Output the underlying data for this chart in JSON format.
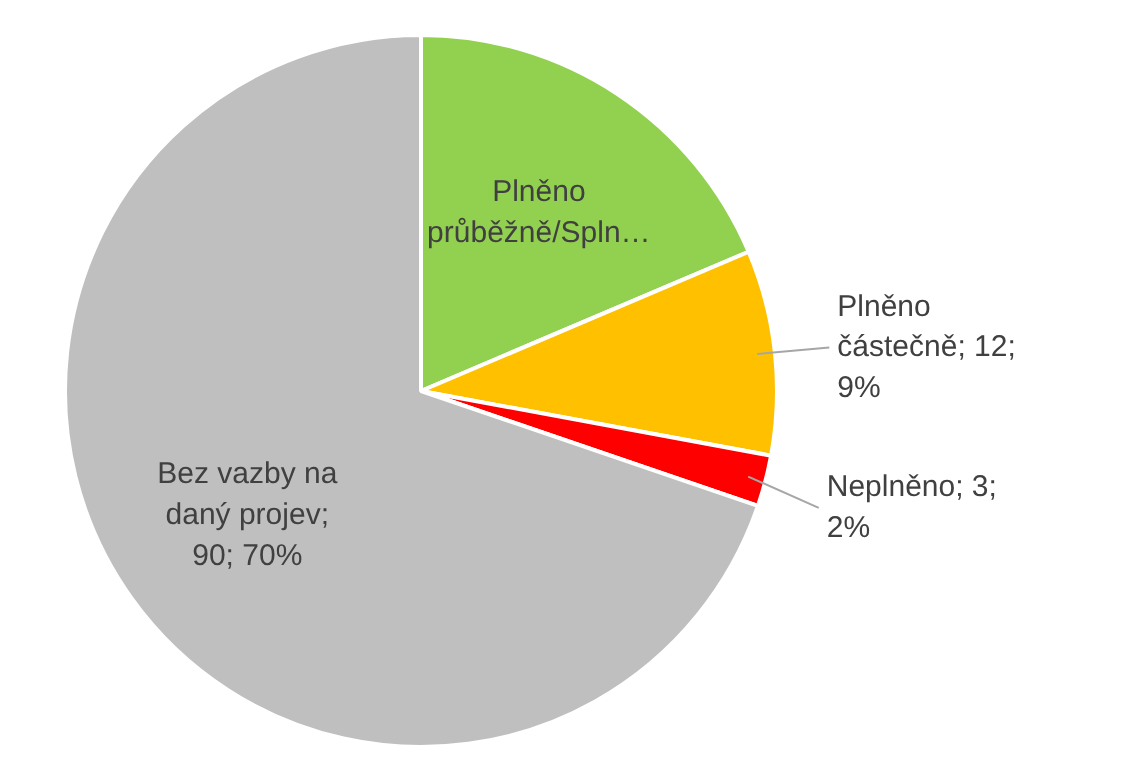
{
  "chart_data": {
    "type": "pie",
    "categories": [
      "Plněno průběžně/Spln…",
      "Plněno částečně",
      "Neplněno",
      "Bez vazby na daný projev"
    ],
    "values": [
      24,
      12,
      3,
      90
    ],
    "value_labels": [
      null,
      "; 12; 9%",
      "; 3; 2%",
      "; 90; 70%"
    ],
    "colors": [
      "#92d050",
      "#ffc000",
      "#ff0000",
      "#bfbfbf"
    ]
  }
}
